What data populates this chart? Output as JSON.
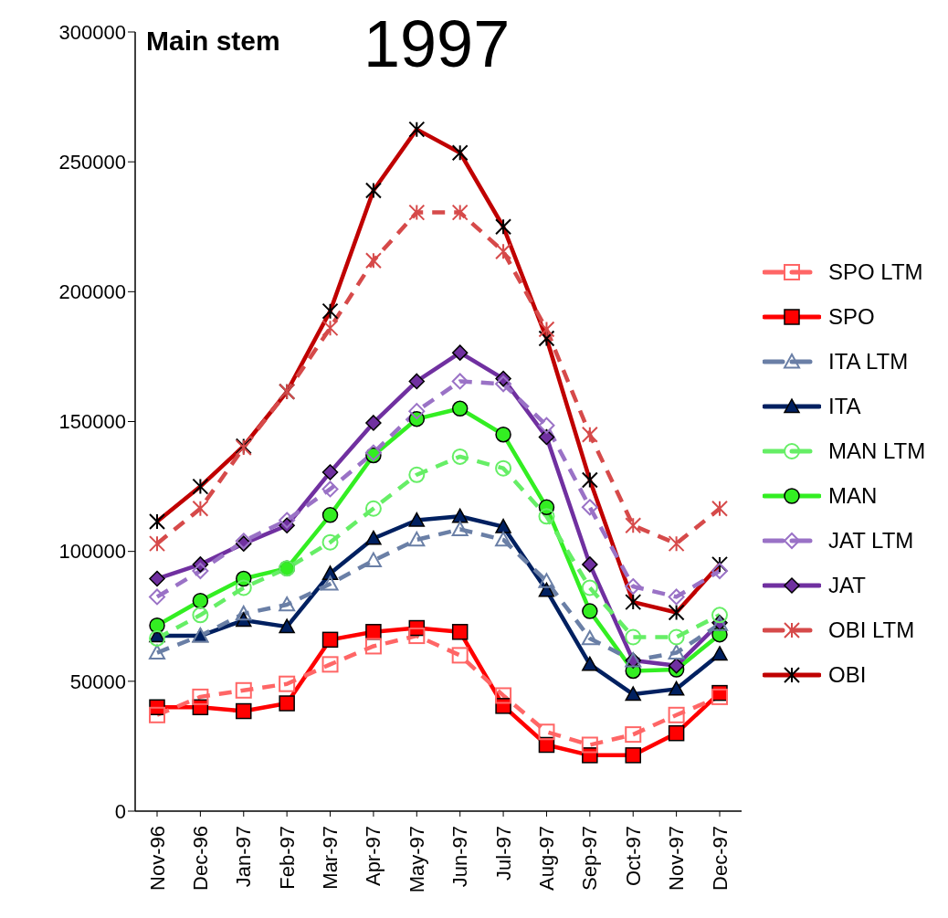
{
  "chart_data": {
    "type": "line",
    "title": "1997",
    "annotations": [
      "Main stem"
    ],
    "categories": [
      "Nov-96",
      "Dec-96",
      "Jan-97",
      "Feb-97",
      "Mar-97",
      "Apr-97",
      "May-97",
      "Jun-97",
      "Jul-97",
      "Aug-97",
      "Sep-97",
      "Oct-97",
      "Nov-97",
      "Dec-97"
    ],
    "ylim": [
      0,
      300000
    ],
    "yticks": [
      0,
      50000,
      100000,
      150000,
      200000,
      250000,
      300000
    ],
    "grid": false,
    "legend": "right",
    "series": [
      {
        "name": "SPO LTM",
        "color": "#ff6666",
        "line_style": "dashed",
        "marker": "square",
        "values": [
          37000,
          44000,
          46500,
          49000,
          56500,
          63500,
          67500,
          60000,
          44500,
          30500,
          25500,
          29500,
          37000,
          44000
        ]
      },
      {
        "name": "SPO",
        "color": "#ff0000",
        "line_style": "solid",
        "marker": "square",
        "values": [
          40000,
          40000,
          38500,
          41500,
          66000,
          69000,
          70500,
          69000,
          40500,
          25500,
          21500,
          21500,
          30000,
          45500
        ]
      },
      {
        "name": "ITA LTM",
        "color": "#6a7fa6",
        "line_style": "dashed",
        "marker": "triangle",
        "values": [
          61000,
          67500,
          76000,
          79500,
          87500,
          96500,
          104500,
          108500,
          104500,
          88500,
          66500,
          58000,
          61000,
          72000
        ]
      },
      {
        "name": "ITA",
        "color": "#002060",
        "line_style": "solid",
        "marker": "triangle",
        "values": [
          67500,
          67500,
          73500,
          71000,
          91500,
          105000,
          112000,
          113500,
          109500,
          85000,
          56500,
          45000,
          47000,
          60500
        ]
      },
      {
        "name": "MAN LTM",
        "color": "#66ee66",
        "line_style": "dashed",
        "marker": "circle",
        "values": [
          66500,
          75500,
          86000,
          93500,
          103500,
          116500,
          129500,
          136500,
          132000,
          113500,
          86000,
          67000,
          67000,
          75500
        ]
      },
      {
        "name": "MAN",
        "color": "#33ee22",
        "line_style": "solid",
        "marker": "circle",
        "values": [
          71500,
          81000,
          89500,
          93500,
          114000,
          137000,
          151000,
          155000,
          145000,
          117000,
          77000,
          54000,
          54500,
          68000
        ]
      },
      {
        "name": "JAT LTM",
        "color": "#9a72c6",
        "line_style": "dashed",
        "marker": "diamond",
        "values": [
          82500,
          92500,
          104000,
          112000,
          124000,
          138000,
          154000,
          165500,
          164500,
          148500,
          117000,
          86500,
          82500,
          92500
        ]
      },
      {
        "name": "JAT",
        "color": "#7030a0",
        "line_style": "solid",
        "marker": "diamond",
        "values": [
          89500,
          95000,
          103000,
          110000,
          130500,
          149500,
          165500,
          176500,
          166500,
          144000,
          95000,
          58000,
          56000,
          72500
        ]
      },
      {
        "name": "OBI LTM",
        "color": "#d64a4a",
        "line_style": "dashed",
        "marker": "cross",
        "values": [
          103000,
          116500,
          140000,
          161500,
          186000,
          212000,
          230500,
          230500,
          215500,
          185500,
          145000,
          110000,
          103000,
          116500
        ]
      },
      {
        "name": "OBI",
        "color": "#c00000",
        "line_style": "solid",
        "marker": "cross",
        "values": [
          111500,
          125000,
          140500,
          161500,
          192500,
          239000,
          262500,
          253500,
          225000,
          182000,
          127500,
          80500,
          76500,
          95000
        ]
      }
    ]
  }
}
